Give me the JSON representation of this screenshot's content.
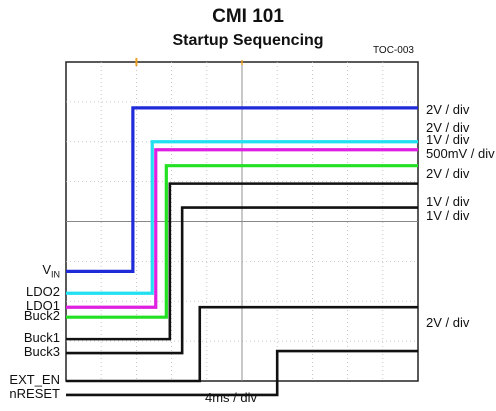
{
  "title": "CMI  101",
  "subtitle": "Startup Sequencing",
  "figure_id": "TOC-003",
  "chart_data": {
    "type": "line",
    "title": "CMI  101",
    "subtitle": "Startup Sequencing",
    "xlabel": "4ms / div",
    "x_unit": "div",
    "xlim": [
      0,
      10
    ],
    "ylim": [
      0,
      8
    ],
    "grid": true,
    "colors": {
      "blue": "#1f2bd8",
      "cyan": "#22e0f0",
      "magenta": "#e020e0",
      "green": "#22e022",
      "black": "#111111",
      "trigger": "#f0a020"
    },
    "series": [
      {
        "name": "VIN",
        "color": "blue",
        "level_low": 2.75,
        "level_high": 6.85,
        "step_x": 1.9
      },
      {
        "name": "LDO2",
        "color": "cyan",
        "level_low": 2.2,
        "level_high": 6.0,
        "step_x": 2.45
      },
      {
        "name": "LDO1",
        "color": "magenta",
        "level_low": 1.85,
        "level_high": 5.8,
        "step_x": 2.55
      },
      {
        "name": "Buck2",
        "color": "green",
        "level_low": 1.6,
        "level_high": 5.4,
        "step_x": 2.85
      },
      {
        "name": "Buck1",
        "color": "black",
        "level_low": 1.05,
        "level_high": 4.95,
        "step_x": 2.95
      },
      {
        "name": "Buck3",
        "color": "black",
        "level_low": 0.7,
        "level_high": 4.35,
        "step_x": 3.3
      },
      {
        "name": "EXT_EN",
        "color": "black",
        "level_low": 0.0,
        "level_high": 1.85,
        "step_x": 3.8
      },
      {
        "name": "nRESET",
        "color": "black",
        "level_low": -0.35,
        "level_high": 0.75,
        "step_x": 6.0
      }
    ],
    "channel_labels": [
      {
        "text": "V",
        "sub": "IN",
        "y": 2.75
      },
      {
        "text": "LDO2",
        "y": 2.2
      },
      {
        "text": "LDO1",
        "y": 1.85
      },
      {
        "text": "Buck2",
        "y": 1.6
      },
      {
        "text": "Buck1",
        "y": 1.05
      },
      {
        "text": "Buck3",
        "y": 0.7
      },
      {
        "text": "EXT_EN",
        "y": 0.0
      },
      {
        "text": "nRESET",
        "y": -0.35
      }
    ],
    "scale_labels": [
      {
        "text": "2V / div",
        "y": 6.8
      },
      {
        "text": "2V / div",
        "y": 6.35
      },
      {
        "text": "1V / div",
        "y": 6.05
      },
      {
        "text": "500mV / div",
        "y": 5.7
      },
      {
        "text": "2V / div",
        "y": 5.2
      },
      {
        "text": "1V / div",
        "y": 4.5
      },
      {
        "text": "1V / div",
        "y": 4.15
      },
      {
        "text": "2V / div",
        "y": 1.45
      }
    ]
  }
}
